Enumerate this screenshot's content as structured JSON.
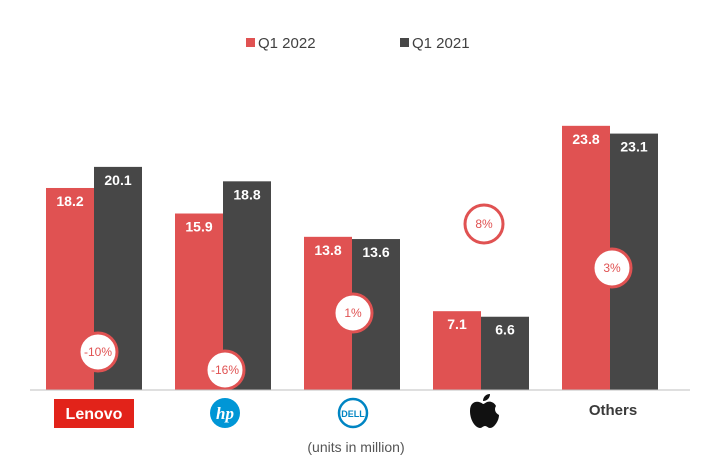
{
  "chart_data": {
    "type": "bar",
    "categories": [
      "Lenovo",
      "HP",
      "Dell",
      "Apple",
      "Others"
    ],
    "series": [
      {
        "name": "Q1 2022",
        "values": [
          18.2,
          15.9,
          13.8,
          7.1,
          23.8
        ]
      },
      {
        "name": "Q1 2021",
        "values": [
          20.1,
          18.8,
          13.6,
          6.6,
          23.1
        ]
      }
    ],
    "changes": [
      "-10%",
      "-16%",
      "1%",
      "8%",
      "3%"
    ],
    "category_labels": {
      "lenovo_logo_text": "Lenovo",
      "hp_logo_text": "hp",
      "dell_logo_text": "DELL",
      "others": "Others"
    },
    "note": "(units in million)",
    "ylim": [
      0,
      26
    ],
    "grid": false,
    "legend_position": "top-center",
    "colors": {
      "Q1 2022": "#e05252",
      "Q1 2021": "#474747",
      "lenovo": "#e2231a",
      "hp": "#0096d6",
      "dell": "#0085c3",
      "axis": "#bfbfbf"
    }
  }
}
